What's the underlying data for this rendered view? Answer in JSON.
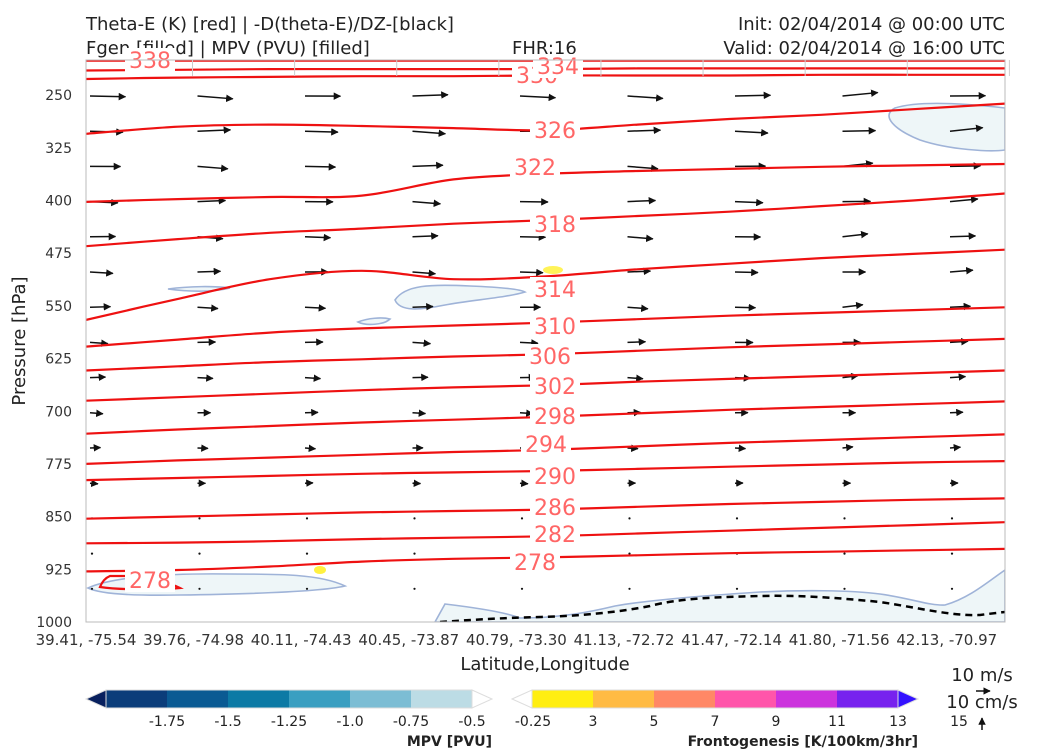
{
  "header": {
    "title_line1": "Theta-E (K) [red] | -D(theta-E)/DZ-[black]",
    "title_line2": "Fgen [filled] | MPV (PVU) [filled]",
    "fhr": "FHR:16",
    "init": "Init: 02/04/2014 @ 00:00 UTC",
    "valid": "Valid: 02/04/2014 @ 16:00 UTC"
  },
  "chart_data": {
    "type": "cross-section",
    "xlabel": "Latitude,Longitude",
    "ylabel": "Pressure [hPa]",
    "ylim": [
      1000,
      200
    ],
    "yticks": [
      "250",
      "325",
      "400",
      "475",
      "550",
      "625",
      "700",
      "775",
      "850",
      "925",
      "1000"
    ],
    "ytick_values": [
      250,
      325,
      400,
      475,
      550,
      625,
      700,
      775,
      850,
      925,
      1000
    ],
    "xticks": [
      "39.41, -75.54",
      "39.76, -74.98",
      "40.11, -74.43",
      "40.45, -73.87",
      "40.79, -73.30",
      "41.13, -72.72",
      "41.47, -72.14",
      "41.80, -71.56",
      "42.13, -70.97"
    ],
    "theta_e_color": "#ee1111",
    "theta_e_contours": [
      {
        "value": 278,
        "label": "278",
        "p": [
          928,
          926,
          921,
          914,
          910,
          908,
          905,
          902,
          900,
          898,
          896
        ]
      },
      {
        "value": 282,
        "label": "282",
        "p": [
          888,
          887,
          885,
          882,
          880,
          878,
          874,
          870,
          866,
          862,
          858
        ]
      },
      {
        "value": 286,
        "label": "286",
        "p": [
          853,
          850,
          847,
          844,
          842,
          840,
          836,
          832,
          829,
          826,
          824
        ]
      },
      {
        "value": 290,
        "label": "290",
        "p": [
          798,
          795,
          792,
          789,
          787,
          785,
          782,
          779,
          776,
          773,
          771
        ]
      },
      {
        "value": 294,
        "label": "294",
        "p": [
          775,
          770,
          766,
          762,
          758,
          755,
          750,
          745,
          741,
          737,
          733
        ]
      },
      {
        "value": 298,
        "label": "298",
        "p": [
          732,
          726,
          721,
          716,
          712,
          708,
          703,
          698,
          694,
          690,
          686
        ]
      },
      {
        "value": 302,
        "label": "302",
        "p": [
          685,
          680,
          675,
          670,
          666,
          663,
          658,
          654,
          650,
          646,
          642
        ]
      },
      {
        "value": 306,
        "label": "306",
        "p": [
          642,
          636,
          630,
          626,
          622,
          619,
          614,
          609,
          605,
          601,
          597
        ]
      },
      {
        "value": 310,
        "label": "310",
        "p": [
          608,
          598,
          588,
          582,
          578,
          574,
          569,
          564,
          560,
          556,
          552
        ]
      },
      {
        "value": 314,
        "label": "314",
        "p": [
          570,
          540,
          512,
          500,
          512,
          508,
          498,
          490,
          482,
          476,
          470
        ]
      },
      {
        "value": 318,
        "label": "318",
        "p": [
          465,
          455,
          446,
          440,
          433,
          428,
          422,
          416,
          408,
          400,
          390
        ]
      },
      {
        "value": 322,
        "label": "322",
        "p": [
          402,
          398,
          395,
          393,
          370,
          362,
          358,
          355,
          352,
          350,
          348
        ]
      },
      {
        "value": 326,
        "label": "326",
        "p": [
          305,
          295,
          292,
          294,
          297,
          300,
          292,
          284,
          278,
          270,
          262
        ]
      },
      {
        "value": 330,
        "label": "330",
        "p": [
          227,
          225,
          224,
          223,
          223,
          222,
          222,
          222,
          221,
          221,
          221
        ]
      },
      {
        "value": 334,
        "label": "334",
        "p": [
          215,
          214,
          213,
          213,
          213,
          213,
          212,
          212,
          212,
          212,
          212
        ]
      },
      {
        "value": 338,
        "label": "338",
        "p": [
          201,
          201,
          201,
          201,
          201,
          201,
          201,
          201,
          201,
          201,
          201
        ]
      }
    ],
    "mpv_colorbar": {
      "label": "MPV [PVU]",
      "ticks": [
        "-1.75",
        "-1.5",
        "-1.25",
        "-1.0",
        "-0.75",
        "-0.5",
        "-0.25"
      ],
      "colors": [
        "#08205e",
        "#0b3d7a",
        "#0a5a93",
        "#0c7aa5",
        "#3a9fc1",
        "#7cbdd4",
        "#bcdce5",
        "#ffffff"
      ]
    },
    "fgen_colorbar": {
      "label": "Frontogenesis [K/100km/3hr]",
      "ticks": [
        "3",
        "5",
        "7",
        "9",
        "11",
        "13",
        "15"
      ],
      "colors": [
        "#ffffff",
        "#ffee11",
        "#ffbb44",
        "#ff8866",
        "#ff55aa",
        "#cc33dd",
        "#7722ee",
        "#3311ff"
      ]
    },
    "vector_key": {
      "wind": "10 m/s",
      "vertical": "10 cm/s"
    }
  }
}
